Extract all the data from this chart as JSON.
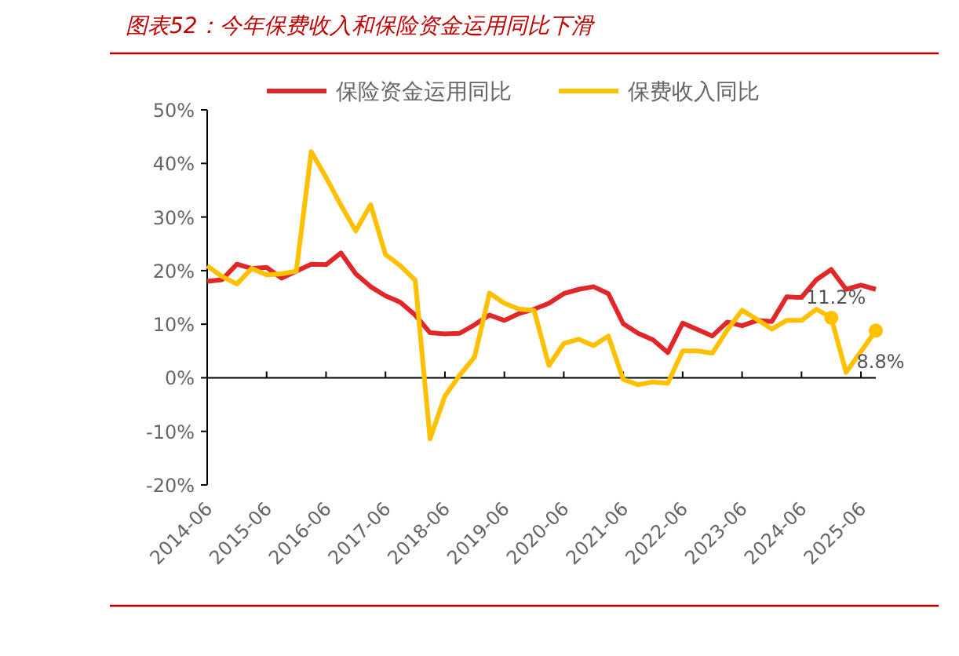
{
  "chart_data": {
    "type": "line",
    "title": "图表52：今年保费收入和保险资金运用同比下滑",
    "x": [
      "2014-06",
      "2014-09",
      "2014-12",
      "2015-03",
      "2015-06",
      "2015-09",
      "2015-12",
      "2016-03",
      "2016-06",
      "2016-09",
      "2016-12",
      "2017-03",
      "2017-06",
      "2017-09",
      "2017-12",
      "2018-03",
      "2018-06",
      "2018-09",
      "2018-12",
      "2019-03",
      "2019-06",
      "2019-09",
      "2019-12",
      "2020-03",
      "2020-06",
      "2020-09",
      "2020-12",
      "2021-03",
      "2021-06",
      "2021-09",
      "2021-12",
      "2022-03",
      "2022-06",
      "2022-09",
      "2022-12",
      "2023-03",
      "2023-06",
      "2023-09",
      "2023-12",
      "2024-03",
      "2024-06",
      "2024-09",
      "2024-12",
      "2025-03",
      "2025-06",
      "2025-09"
    ],
    "series": [
      {
        "name": "保险资金运用同比",
        "color": "#e0282a",
        "values": [
          18.0,
          18.3,
          21.2,
          20.4,
          20.6,
          18.6,
          19.9,
          21.2,
          21.1,
          23.3,
          19.4,
          17.0,
          15.3,
          14.1,
          11.7,
          8.4,
          8.2,
          8.3,
          9.9,
          11.7,
          10.7,
          12.0,
          12.8,
          13.9,
          15.7,
          16.5,
          17.0,
          15.7,
          10.1,
          8.3,
          7.1,
          4.7,
          10.2,
          9.0,
          7.8,
          10.4,
          9.7,
          10.7,
          10.5,
          15.1,
          15.0,
          18.3,
          20.2,
          16.5,
          17.3,
          16.5
        ]
      },
      {
        "name": "保费收入同比",
        "color": "#ffc000",
        "values": [
          20.9,
          18.9,
          17.5,
          20.4,
          19.2,
          19.4,
          19.9,
          42.2,
          37.4,
          32.2,
          27.4,
          32.3,
          23.0,
          20.9,
          18.2,
          -11.4,
          -3.4,
          0.5,
          3.9,
          15.8,
          13.9,
          12.8,
          12.6,
          2.3,
          6.4,
          7.2,
          6.0,
          7.8,
          -0.3,
          -1.3,
          -0.8,
          -1.0,
          5.0,
          5.0,
          4.6,
          8.9,
          12.6,
          10.9,
          9.1,
          10.7,
          10.7,
          12.8,
          11.2,
          1.0,
          4.9,
          8.8
        ],
        "value_labels": [
          null,
          null,
          null,
          null,
          null,
          null,
          null,
          null,
          null,
          null,
          null,
          null,
          null,
          null,
          null,
          null,
          null,
          null,
          null,
          null,
          null,
          null,
          null,
          null,
          null,
          null,
          null,
          null,
          null,
          null,
          null,
          null,
          null,
          null,
          null,
          null,
          null,
          null,
          null,
          null,
          null,
          null,
          "11.2%",
          null,
          null,
          "8.8%"
        ]
      }
    ],
    "xlim": [
      "2014-06",
      "2025-09"
    ],
    "xticks": [
      "2014-06",
      "2015-06",
      "2016-06",
      "2017-06",
      "2018-06",
      "2019-06",
      "2020-06",
      "2021-06",
      "2022-06",
      "2023-06",
      "2024-06",
      "2025-06"
    ],
    "ylim": [
      -20,
      50
    ],
    "yticks": [
      {
        "value": -20,
        "label": "-20%"
      },
      {
        "value": -10,
        "label": "-10%"
      },
      {
        "value": 0,
        "label": "0%"
      },
      {
        "value": 10,
        "label": "10%"
      },
      {
        "value": 20,
        "label": "20%"
      },
      {
        "value": 30,
        "label": "30%"
      },
      {
        "value": 40,
        "label": "40%"
      },
      {
        "value": 50,
        "label": "50%"
      }
    ],
    "legend": "top",
    "marker": "none",
    "line_style": "solid"
  }
}
